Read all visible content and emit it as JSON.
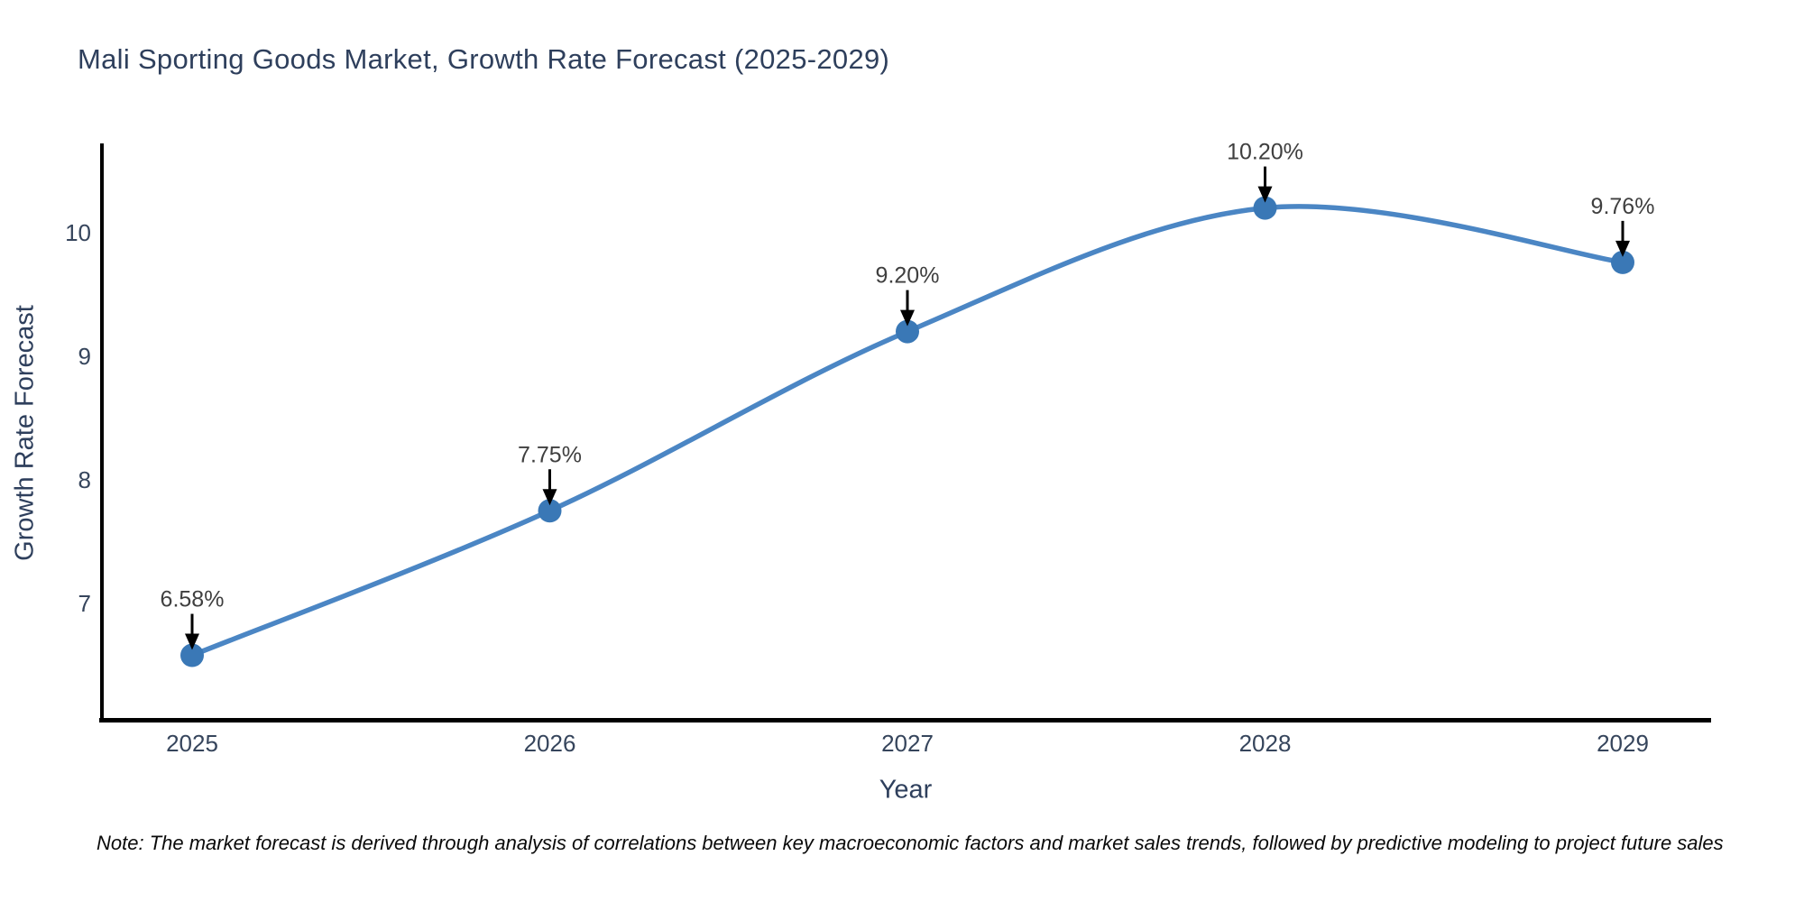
{
  "title": "Mali Sporting Goods Market, Growth Rate Forecast (2025-2029)",
  "note": "Note: The market forecast is derived through analysis of correlations between key macroeconomic factors and market sales trends, followed by predictive modeling to project future sales",
  "chart_data": {
    "type": "line",
    "title": "Mali Sporting Goods Market, Growth Rate Forecast (2025-2029)",
    "x": [
      2025,
      2026,
      2027,
      2028,
      2029
    ],
    "x_tick_labels": [
      "2025",
      "2026",
      "2027",
      "2028",
      "2029"
    ],
    "values": [
      6.58,
      7.75,
      9.2,
      10.2,
      9.76
    ],
    "point_labels": [
      "6.58%",
      "7.75%",
      "9.20%",
      "10.20%",
      "9.76%"
    ],
    "series_name": "Growth Rate Forecast",
    "xlabel": "Year",
    "ylabel": "Growth Rate Forecast",
    "yticks": [
      7,
      8,
      9,
      10
    ],
    "ylim": [
      6.0,
      10.8
    ],
    "xlim": [
      2024.75,
      2029.25
    ],
    "grid": false,
    "legend": false,
    "line_shape": "spline",
    "marker": "circle",
    "annotations_have_arrows": true,
    "colors": {
      "line": "#4b86c4",
      "marker": "#3a78b6",
      "annotation_text": "#3f3f3f",
      "arrow": "#000000",
      "axis": "#000000",
      "tick_text": "#36455c",
      "title_text": "#2e3f5c"
    }
  }
}
